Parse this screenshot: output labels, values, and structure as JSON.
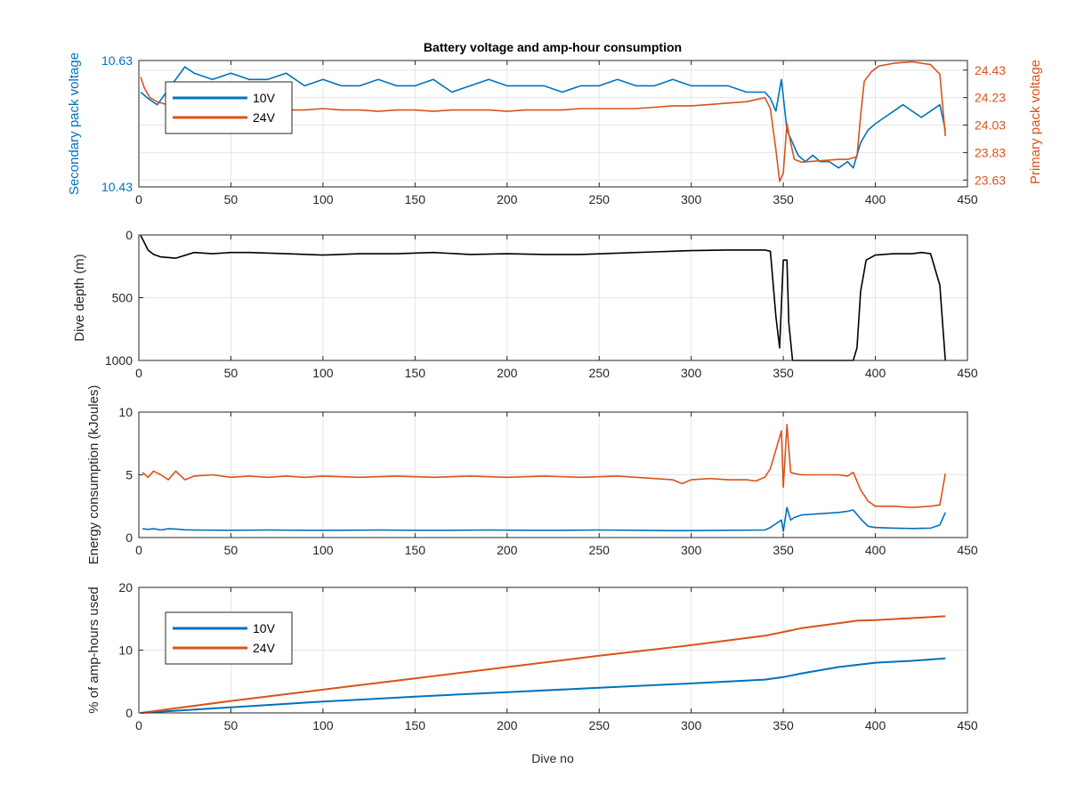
{
  "figure": {
    "title": "Battery voltage and amp-hour consumption",
    "xlabel": "Dive no"
  },
  "colors": {
    "series_10v": "#0072BD",
    "series_24v": "#D95319",
    "depth": "#000000",
    "grid": "#e6e6e6",
    "axis": "#262626"
  },
  "chart_data": [
    {
      "type": "line",
      "title": "Battery voltage and amp-hour consumption",
      "xlabel": "",
      "ylabel": "Secondary pack voltage",
      "y2label": "Primary pack voltage",
      "xlim": [
        0,
        450
      ],
      "xticks": [
        0,
        50,
        100,
        150,
        200,
        250,
        300,
        350,
        400,
        450
      ],
      "ylim": [
        10.43,
        10.63
      ],
      "yticks": [
        10.43,
        10.63
      ],
      "y2lim": [
        23.58,
        24.5
      ],
      "y2ticks": [
        23.63,
        23.83,
        24.03,
        24.23,
        24.43
      ],
      "grid": true,
      "legend": {
        "position": "top-left",
        "entries": [
          "10V",
          "24V"
        ]
      },
      "series": [
        {
          "name": "10V",
          "axis": "left",
          "x": [
            1,
            5,
            10,
            15,
            20,
            25,
            30,
            40,
            50,
            60,
            70,
            80,
            90,
            100,
            110,
            120,
            130,
            140,
            150,
            160,
            170,
            180,
            190,
            200,
            210,
            220,
            230,
            240,
            250,
            260,
            270,
            280,
            290,
            300,
            310,
            320,
            330,
            340,
            343,
            346,
            349,
            352,
            355,
            358,
            362,
            366,
            370,
            375,
            380,
            385,
            388,
            392,
            396,
            400,
            405,
            410,
            415,
            420,
            425,
            430,
            435,
            438
          ],
          "y": [
            10.58,
            10.57,
            10.56,
            10.58,
            10.6,
            10.62,
            10.61,
            10.6,
            10.61,
            10.6,
            10.6,
            10.61,
            10.59,
            10.6,
            10.59,
            10.59,
            10.6,
            10.59,
            10.59,
            10.6,
            10.58,
            10.59,
            10.6,
            10.59,
            10.59,
            10.59,
            10.58,
            10.59,
            10.59,
            10.6,
            10.59,
            10.59,
            10.6,
            10.59,
            10.59,
            10.59,
            10.58,
            10.58,
            10.57,
            10.55,
            10.6,
            10.52,
            10.5,
            10.48,
            10.47,
            10.48,
            10.47,
            10.47,
            10.46,
            10.47,
            10.46,
            10.5,
            10.52,
            10.53,
            10.54,
            10.55,
            10.56,
            10.55,
            10.54,
            10.55,
            10.56,
            10.52
          ]
        },
        {
          "name": "24V",
          "axis": "right",
          "x": [
            1,
            3,
            6,
            10,
            15,
            20,
            30,
            40,
            50,
            60,
            70,
            80,
            90,
            100,
            110,
            120,
            130,
            140,
            150,
            160,
            170,
            180,
            190,
            200,
            210,
            220,
            230,
            240,
            250,
            260,
            270,
            280,
            290,
            300,
            310,
            320,
            330,
            340,
            343,
            346,
            348,
            350,
            352,
            354,
            356,
            360,
            370,
            380,
            385,
            390,
            392,
            394,
            398,
            402,
            410,
            420,
            430,
            435,
            438
          ],
          "y": [
            24.38,
            24.3,
            24.23,
            24.2,
            24.18,
            24.17,
            24.16,
            24.14,
            24.15,
            24.14,
            24.15,
            24.14,
            24.14,
            24.15,
            24.14,
            24.14,
            24.13,
            24.14,
            24.14,
            24.13,
            24.14,
            24.14,
            24.14,
            24.13,
            24.14,
            24.14,
            24.14,
            24.15,
            24.15,
            24.15,
            24.15,
            24.16,
            24.17,
            24.17,
            24.18,
            24.19,
            24.2,
            24.23,
            24.15,
            23.85,
            23.62,
            23.68,
            24.04,
            23.9,
            23.78,
            23.76,
            23.77,
            23.78,
            23.78,
            23.8,
            24.1,
            24.35,
            24.42,
            24.46,
            24.48,
            24.49,
            24.47,
            24.4,
            23.95
          ]
        }
      ]
    },
    {
      "type": "line",
      "title": "",
      "xlabel": "",
      "ylabel": "Dive depth (m)",
      "xlim": [
        0,
        450
      ],
      "xticks": [
        0,
        50,
        100,
        150,
        200,
        250,
        300,
        350,
        400,
        450
      ],
      "ylim": [
        0,
        1000
      ],
      "yticks": [
        0,
        500,
        1000
      ],
      "y_reversed": true,
      "grid": true,
      "series": [
        {
          "name": "",
          "x": [
            1,
            3,
            5,
            8,
            12,
            20,
            30,
            40,
            50,
            60,
            80,
            100,
            120,
            140,
            160,
            180,
            200,
            220,
            240,
            260,
            280,
            300,
            320,
            340,
            343,
            346,
            348,
            350,
            352,
            353,
            355,
            358,
            370,
            380,
            388,
            390,
            392,
            395,
            400,
            410,
            420,
            425,
            430,
            435,
            437,
            438
          ],
          "y": [
            5,
            60,
            120,
            155,
            175,
            185,
            140,
            150,
            140,
            140,
            150,
            160,
            150,
            150,
            140,
            155,
            150,
            155,
            155,
            145,
            135,
            125,
            120,
            120,
            130,
            650,
            900,
            200,
            200,
            700,
            1000,
            1000,
            1000,
            1000,
            1000,
            900,
            450,
            200,
            160,
            150,
            150,
            140,
            150,
            400,
            800,
            1000
          ]
        }
      ]
    },
    {
      "type": "line",
      "title": "",
      "xlabel": "",
      "ylabel": "Energy consumption (kJoules)",
      "xlim": [
        0,
        450
      ],
      "xticks": [
        0,
        50,
        100,
        150,
        200,
        250,
        300,
        350,
        400,
        450
      ],
      "ylim": [
        0,
        10
      ],
      "yticks": [
        0,
        5,
        10
      ],
      "grid": true,
      "series": [
        {
          "name": "24V",
          "x": [
            2,
            5,
            8,
            12,
            16,
            20,
            25,
            30,
            40,
            50,
            60,
            70,
            80,
            90,
            100,
            120,
            140,
            160,
            180,
            200,
            220,
            240,
            260,
            280,
            290,
            295,
            300,
            310,
            320,
            330,
            335,
            340,
            343,
            346,
            349,
            350,
            352,
            354,
            356,
            360,
            370,
            380,
            385,
            388,
            392,
            396,
            400,
            410,
            420,
            430,
            435,
            438
          ],
          "y": [
            5.2,
            4.8,
            5.3,
            5.0,
            4.6,
            5.3,
            4.6,
            4.9,
            5.0,
            4.8,
            4.9,
            4.8,
            4.9,
            4.8,
            4.9,
            4.8,
            4.9,
            4.8,
            4.9,
            4.8,
            4.9,
            4.8,
            4.9,
            4.7,
            4.6,
            4.3,
            4.6,
            4.7,
            4.6,
            4.6,
            4.5,
            4.8,
            5.5,
            7.0,
            8.5,
            4.0,
            9.0,
            5.2,
            5.1,
            5.0,
            5.0,
            5.0,
            4.9,
            5.2,
            3.8,
            2.9,
            2.5,
            2.5,
            2.4,
            2.5,
            2.6,
            5.1
          ]
        },
        {
          "name": "10V",
          "x": [
            2,
            5,
            8,
            12,
            16,
            20,
            25,
            30,
            50,
            70,
            90,
            110,
            130,
            150,
            170,
            190,
            210,
            230,
            250,
            270,
            290,
            295,
            300,
            320,
            340,
            343,
            346,
            349,
            350,
            352,
            354,
            356,
            360,
            370,
            380,
            385,
            388,
            392,
            396,
            400,
            410,
            420,
            430,
            435,
            438
          ],
          "y": [
            0.7,
            0.65,
            0.7,
            0.6,
            0.7,
            0.68,
            0.62,
            0.6,
            0.58,
            0.6,
            0.58,
            0.58,
            0.6,
            0.58,
            0.58,
            0.6,
            0.58,
            0.58,
            0.6,
            0.58,
            0.55,
            0.55,
            0.55,
            0.58,
            0.6,
            0.8,
            1.1,
            1.4,
            0.5,
            2.4,
            1.4,
            1.6,
            1.8,
            1.9,
            2.0,
            2.1,
            2.2,
            1.5,
            0.9,
            0.8,
            0.75,
            0.72,
            0.75,
            1.0,
            2.0
          ]
        }
      ]
    },
    {
      "type": "line",
      "title": "",
      "xlabel": "Dive no",
      "ylabel": "% of amp-hours used",
      "xlim": [
        0,
        450
      ],
      "xticks": [
        0,
        50,
        100,
        150,
        200,
        250,
        300,
        350,
        400,
        450
      ],
      "ylim": [
        0,
        20
      ],
      "yticks": [
        0,
        10,
        20
      ],
      "grid": true,
      "legend": {
        "position": "top-left",
        "entries": [
          "10V",
          "24V"
        ]
      },
      "series": [
        {
          "name": "10V",
          "x": [
            1,
            50,
            100,
            150,
            200,
            250,
            300,
            340,
            350,
            360,
            380,
            400,
            420,
            438
          ],
          "y": [
            0,
            0.9,
            1.8,
            2.6,
            3.3,
            4.0,
            4.7,
            5.3,
            5.7,
            6.3,
            7.3,
            8.0,
            8.3,
            8.7
          ],
          "name_hidden": false
        },
        {
          "name": "24V",
          "x": [
            1,
            50,
            100,
            150,
            200,
            250,
            300,
            340,
            350,
            360,
            380,
            390,
            400,
            420,
            438
          ],
          "y": [
            0,
            1.9,
            3.7,
            5.5,
            7.3,
            9.1,
            10.8,
            12.3,
            12.9,
            13.5,
            14.3,
            14.7,
            14.8,
            15.1,
            15.4
          ]
        }
      ]
    }
  ]
}
